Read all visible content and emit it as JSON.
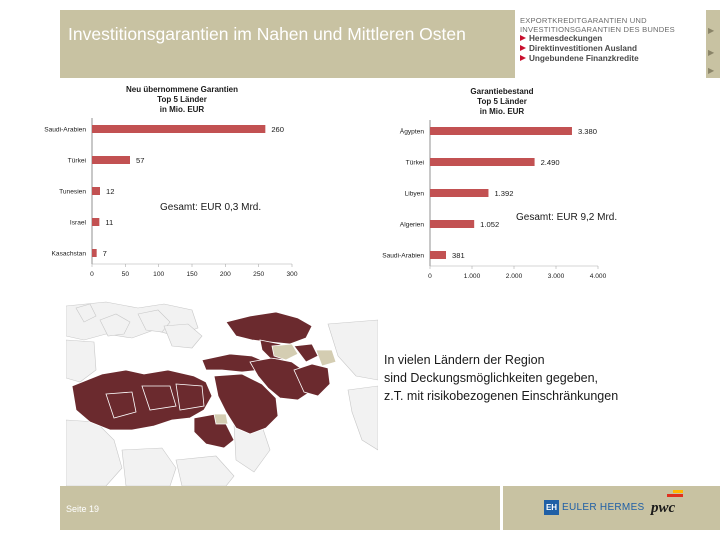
{
  "title": "Investitionsgarantien im Nahen und Mittleren Osten",
  "brand": {
    "lines": [
      "EXPORTKREDITGARANTIEN UND",
      "INVESTITIONSGARANTIEN DES BUNDES"
    ],
    "products": [
      "Hermesdeckungen",
      "Direktinvestitionen Ausland",
      "Ungebundene Finanzkredite"
    ]
  },
  "chart_data": [
    {
      "type": "bar",
      "orientation": "horizontal",
      "title_lines": [
        "Neu übernommene Garantien",
        "Top 5 Länder",
        "in Mio. EUR"
      ],
      "categories": [
        "Saudi-Arabien",
        "Türkei",
        "Tunesien",
        "Israel",
        "Kasachstan"
      ],
      "values": [
        260,
        57,
        12,
        11,
        7
      ],
      "value_labels": [
        "260",
        "57",
        "12",
        "11",
        "7"
      ],
      "xlim": [
        0,
        300
      ],
      "x_ticks": [
        "0",
        "50",
        "100",
        "150",
        "200",
        "250",
        "300"
      ],
      "bar_color": "#c25152",
      "total": "Gesamt: EUR 0,3 Mrd."
    },
    {
      "type": "bar",
      "orientation": "horizontal",
      "title_lines": [
        "Garantiebestand",
        "Top 5 Länder",
        "in Mio. EUR"
      ],
      "categories": [
        "Ägypten",
        "Türkei",
        "Libyen",
        "Algerien",
        "Saudi-Arabien"
      ],
      "values": [
        3380,
        2490,
        1392,
        1052,
        381
      ],
      "value_labels": [
        "3.380",
        "2.490",
        "1.392",
        "1.052",
        "381"
      ],
      "xlim": [
        0,
        4000
      ],
      "x_ticks": [
        "0",
        "1.000",
        "2.000",
        "3.000",
        "4.000"
      ],
      "bar_color": "#c25152",
      "total": "Gesamt: EUR 9,2 Mrd."
    }
  ],
  "map": {
    "highlight_color": "#6b2a2e",
    "secondary_color": "#d4cdb2",
    "caption_lines": [
      "In vielen Ländern der Region",
      "sind Deckungsmöglichkeiten gegeben,",
      "z.T. mit risikobezogenen Einschränkungen"
    ]
  },
  "footer": {
    "page": "Seite 19",
    "logo_eh_mark": "EH",
    "logo_eh": "EULER HERMES",
    "logo_pwc": "pwc"
  },
  "colors": {
    "band": "#c8c2a2",
    "accent": "#c8102e"
  }
}
